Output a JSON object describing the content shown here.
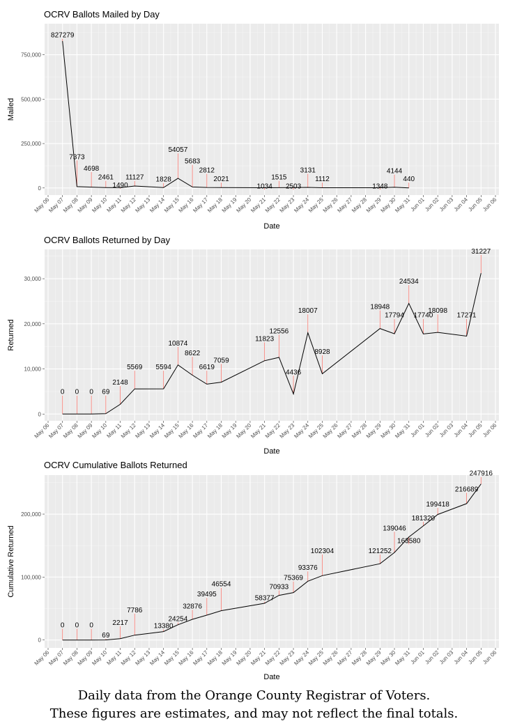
{
  "footer": {
    "line1": "Daily data from the Orange County Registrar of Voters.",
    "line2": "These figures are estimates, and may not reflect the final totals."
  },
  "chart_data": [
    {
      "type": "line",
      "title": "OCRV Ballots Mailed by Day",
      "xlabel": "Date",
      "ylabel": "Mailed",
      "x_ticks": [
        "May 06",
        "May 07",
        "May 08",
        "May 09",
        "May 10",
        "May 11",
        "May 12",
        "May 13",
        "May 14",
        "May 15",
        "May 16",
        "May 17",
        "May 18",
        "May 19",
        "May 20",
        "May 21",
        "May 22",
        "May 23",
        "May 24",
        "May 25",
        "May 26",
        "May 27",
        "May 28",
        "May 29",
        "May 30",
        "May 31",
        "Jun 01",
        "Jun 02",
        "Jun 03",
        "Jun 04",
        "Jun 05",
        "Jun 06"
      ],
      "y_ticks": [
        0,
        250000,
        500000,
        750000
      ],
      "y_tick_labels": [
        "0",
        "250,000",
        "500,000",
        "750,000"
      ],
      "ylim": [
        -40000,
        925000
      ],
      "grid": true,
      "points": [
        {
          "x": "May 07",
          "y": 827279,
          "label": "827279",
          "tip": 840000
        },
        {
          "x": "May 08",
          "y": 7373,
          "label": "7373",
          "tip": 155000
        },
        {
          "x": "May 09",
          "y": 4698,
          "label": "4698",
          "tip": 90000
        },
        {
          "x": "May 10",
          "y": 2461,
          "label": "2461",
          "tip": 40000
        },
        {
          "x": "May 11",
          "y": 1490,
          "label": "1490",
          "tip": -5000
        },
        {
          "x": "May 12",
          "y": 11127,
          "label": "11127",
          "tip": 40000
        },
        {
          "x": "May 14",
          "y": 1828,
          "label": "1828",
          "tip": 28000
        },
        {
          "x": "May 15",
          "y": 54057,
          "label": "54057",
          "tip": 195000
        },
        {
          "x": "May 16",
          "y": 5683,
          "label": "5683",
          "tip": 130000
        },
        {
          "x": "May 17",
          "y": 2812,
          "label": "2812",
          "tip": 80000
        },
        {
          "x": "May 18",
          "y": 2021,
          "label": "2021",
          "tip": 30000
        },
        {
          "x": "May 21",
          "y": 1034,
          "label": "1034",
          "tip": -10000
        },
        {
          "x": "May 22",
          "y": 1515,
          "label": "1515",
          "tip": 40000
        },
        {
          "x": "May 23",
          "y": 2503,
          "label": "2503",
          "tip": -10000
        },
        {
          "x": "May 24",
          "y": 3131,
          "label": "3131",
          "tip": 80000
        },
        {
          "x": "May 25",
          "y": 1112,
          "label": "1112",
          "tip": 30000
        },
        {
          "x": "May 29",
          "y": 1348,
          "label": "1348",
          "tip": -10000
        },
        {
          "x": "May 30",
          "y": 4144,
          "label": "4144",
          "tip": 75000
        },
        {
          "x": "May 31",
          "y": 440,
          "label": "440",
          "tip": 30000
        }
      ]
    },
    {
      "type": "line",
      "title": "OCRV Ballots Returned by Day",
      "xlabel": "Date",
      "ylabel": "Returned",
      "x_ticks": [
        "May 06",
        "May 07",
        "May 08",
        "May 09",
        "May 10",
        "May 11",
        "May 12",
        "May 13",
        "May 14",
        "May 15",
        "May 16",
        "May 17",
        "May 18",
        "May 19",
        "May 20",
        "May 21",
        "May 22",
        "May 23",
        "May 24",
        "May 25",
        "May 26",
        "May 27",
        "May 28",
        "May 29",
        "May 30",
        "May 31",
        "Jun 01",
        "Jun 02",
        "Jun 03",
        "Jun 04",
        "Jun 05",
        "Jun 06"
      ],
      "y_ticks": [
        0,
        10000,
        20000,
        30000
      ],
      "y_tick_labels": [
        "0",
        "10,000",
        "20,000",
        "30,000"
      ],
      "ylim": [
        -1500,
        36500
      ],
      "grid": true,
      "points": [
        {
          "x": "May 07",
          "y": 0,
          "label": "0",
          "tip": 4100
        },
        {
          "x": "May 08",
          "y": 0,
          "label": "0",
          "tip": 4100
        },
        {
          "x": "May 09",
          "y": 0,
          "label": "0",
          "tip": 4100
        },
        {
          "x": "May 10",
          "y": 69,
          "label": "69",
          "tip": 4100
        },
        {
          "x": "May 11",
          "y": 2148,
          "label": "2148",
          "tip": 6200
        },
        {
          "x": "May 12",
          "y": 5569,
          "label": "5569",
          "tip": 9600
        },
        {
          "x": "May 14",
          "y": 5594,
          "label": "5594",
          "tip": 9600
        },
        {
          "x": "May 15",
          "y": 10874,
          "label": "10874",
          "tip": 14900
        },
        {
          "x": "May 16",
          "y": 8622,
          "label": "8622",
          "tip": 12700
        },
        {
          "x": "May 17",
          "y": 6619,
          "label": "6619",
          "tip": 9600
        },
        {
          "x": "May 18",
          "y": 7059,
          "label": "7059",
          "tip": 11100
        },
        {
          "x": "May 21",
          "y": 11823,
          "label": "11823",
          "tip": 15900
        },
        {
          "x": "May 22",
          "y": 12556,
          "label": "12556",
          "tip": 17600
        },
        {
          "x": "May 23",
          "y": 4436,
          "label": "4436",
          "tip": 8500
        },
        {
          "x": "May 24",
          "y": 18007,
          "label": "18007",
          "tip": 22100
        },
        {
          "x": "May 25",
          "y": 8928,
          "label": "8928",
          "tip": 13000
        },
        {
          "x": "May 29",
          "y": 18948,
          "label": "18948",
          "tip": 23000
        },
        {
          "x": "May 30",
          "y": 17794,
          "label": "17794",
          "tip": 21100
        },
        {
          "x": "May 31",
          "y": 24534,
          "label": "24534",
          "tip": 28600
        },
        {
          "x": "Jun 01",
          "y": 17740,
          "label": "17740",
          "tip": 21100
        },
        {
          "x": "Jun 02",
          "y": 18098,
          "label": "18098",
          "tip": 22100
        },
        {
          "x": "Jun 04",
          "y": 17271,
          "label": "17271",
          "tip": 21100
        },
        {
          "x": "Jun 05",
          "y": 31227,
          "label": "31227",
          "tip": 35300
        }
      ]
    },
    {
      "type": "line",
      "title": "OCRV Cumulative Ballots Returned",
      "xlabel": "Date",
      "ylabel": "Cumulative Returned",
      "x_ticks": [
        "May 06",
        "May 07",
        "May 08",
        "May 09",
        "May 10",
        "May 11",
        "May 12",
        "May 13",
        "May 14",
        "May 15",
        "May 16",
        "May 17",
        "May 18",
        "May 19",
        "May 20",
        "May 21",
        "May 22",
        "May 23",
        "May 24",
        "May 25",
        "May 26",
        "May 27",
        "May 28",
        "May 29",
        "May 30",
        "May 31",
        "Jun 01",
        "Jun 02",
        "Jun 03",
        "Jun 04",
        "Jun 05",
        "Jun 06"
      ],
      "y_ticks": [
        0,
        100000,
        200000
      ],
      "y_tick_labels": [
        "0",
        "100,000",
        "200,000"
      ],
      "ylim": [
        -12500,
        262000
      ],
      "grid": true,
      "points": [
        {
          "x": "May 07",
          "y": 0,
          "label": "0",
          "tip": 18000
        },
        {
          "x": "May 08",
          "y": 0,
          "label": "0",
          "tip": 18000
        },
        {
          "x": "May 09",
          "y": 0,
          "label": "0",
          "tip": 18000
        },
        {
          "x": "May 10",
          "y": 69,
          "label": "69",
          "tip": 2000
        },
        {
          "x": "May 11",
          "y": 2217,
          "label": "2217",
          "tip": 22000
        },
        {
          "x": "May 12",
          "y": 7786,
          "label": "7786",
          "tip": 42000
        },
        {
          "x": "May 14",
          "y": 13380,
          "label": "13380",
          "tip": 17000
        },
        {
          "x": "May 15",
          "y": 24254,
          "label": "24254",
          "tip": 28000
        },
        {
          "x": "May 16",
          "y": 32876,
          "label": "32876",
          "tip": 48000
        },
        {
          "x": "May 17",
          "y": 39495,
          "label": "39495",
          "tip": 67000
        },
        {
          "x": "May 18",
          "y": 46554,
          "label": "46554",
          "tip": 83000
        },
        {
          "x": "May 21",
          "y": 58377,
          "label": "58377",
          "tip": 61000
        },
        {
          "x": "May 22",
          "y": 70933,
          "label": "70933",
          "tip": 79000
        },
        {
          "x": "May 23",
          "y": 75369,
          "label": "75369",
          "tip": 93000
        },
        {
          "x": "May 24",
          "y": 93376,
          "label": "93376",
          "tip": 109000
        },
        {
          "x": "May 25",
          "y": 102304,
          "label": "102304",
          "tip": 136000
        },
        {
          "x": "May 29",
          "y": 121252,
          "label": "121252",
          "tip": 136000
        },
        {
          "x": "May 30",
          "y": 139046,
          "label": "139046",
          "tip": 172000
        },
        {
          "x": "May 31",
          "y": 163580,
          "label": "163580",
          "tip": 152000
        },
        {
          "x": "Jun 01",
          "y": 181320,
          "label": "181320",
          "tip": 188000
        },
        {
          "x": "Jun 02",
          "y": 199418,
          "label": "199418",
          "tip": 210000
        },
        {
          "x": "Jun 04",
          "y": 216689,
          "label": "216689",
          "tip": 234000
        },
        {
          "x": "Jun 05",
          "y": 247916,
          "label": "247916",
          "tip": 259000
        }
      ]
    }
  ]
}
